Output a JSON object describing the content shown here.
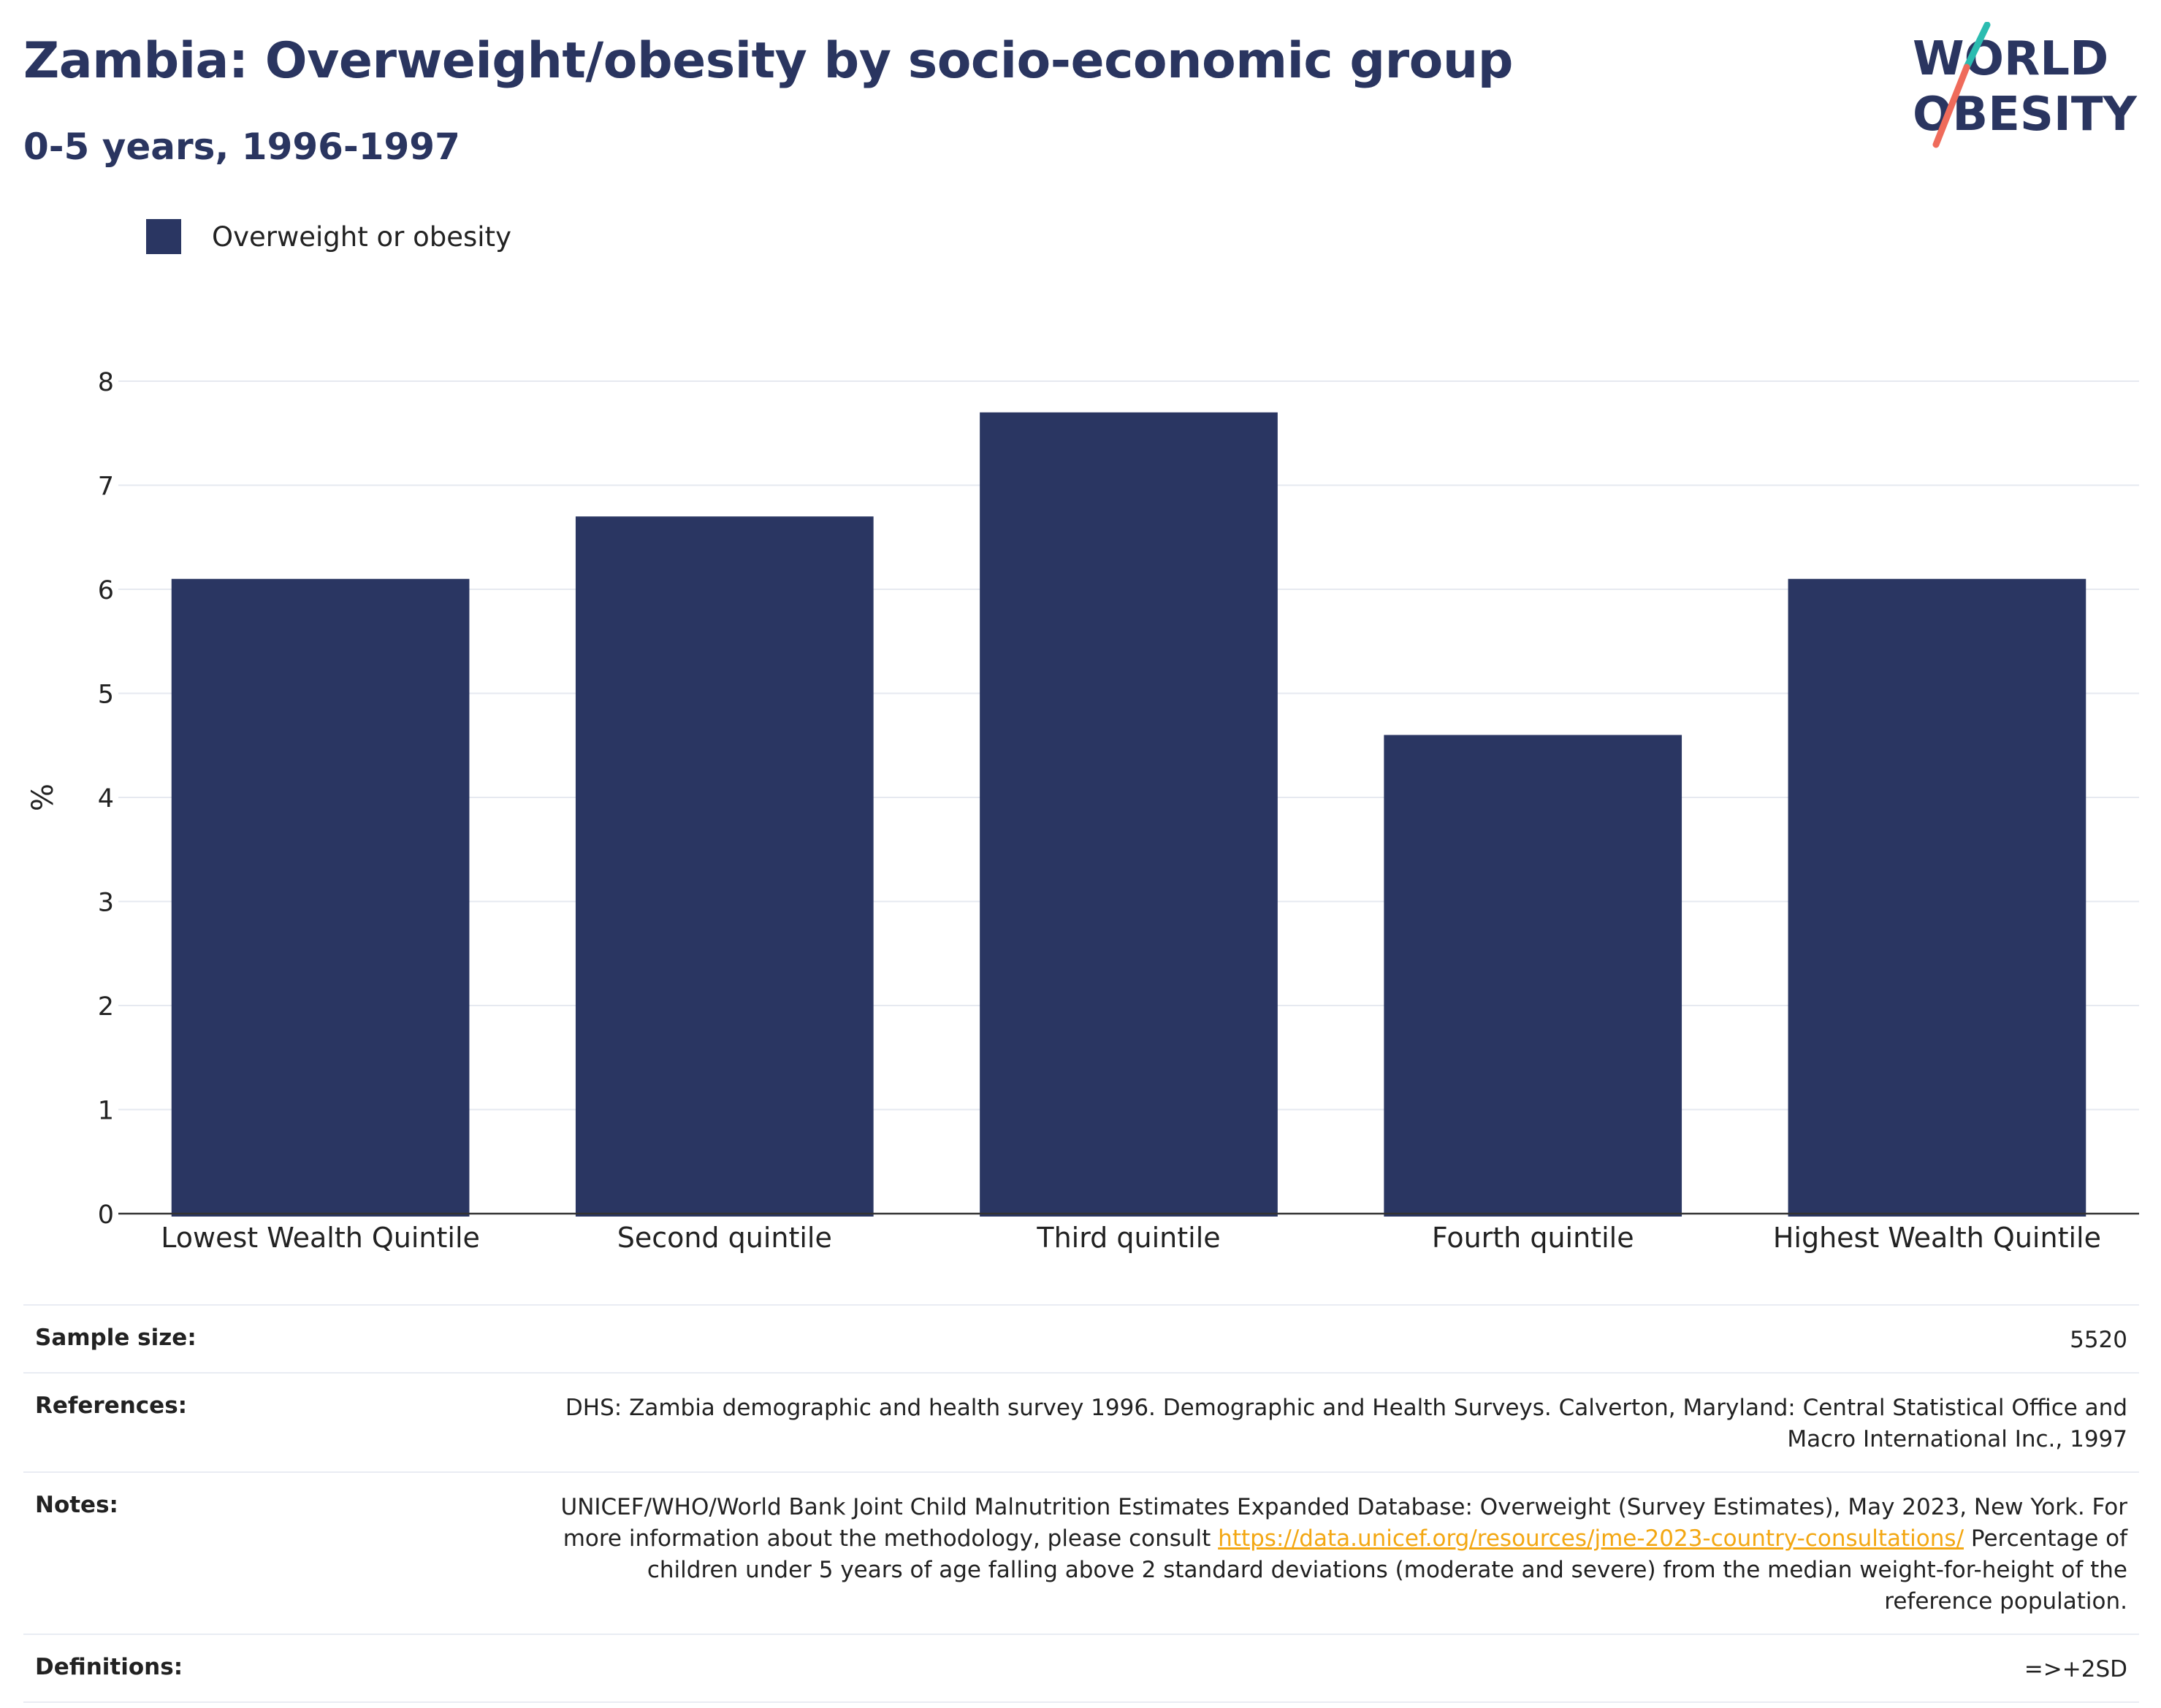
{
  "header": {
    "title": "Zambia: Overweight/obesity by socio-economic group",
    "subtitle": "0-5 years, 1996-1997"
  },
  "logo": {
    "line1": "WORLD",
    "line2": "OBESITY",
    "colors": {
      "text": "#2a3560",
      "slash_top": "#2bbcb0",
      "slash_bottom": "#ef6b5b"
    }
  },
  "legend": {
    "items": [
      {
        "label": "Overweight or obesity",
        "color": "#2a3662"
      }
    ]
  },
  "chart_data": {
    "type": "bar",
    "categories": [
      "Lowest Wealth Quintile",
      "Second quintile",
      "Third quintile",
      "Fourth quintile",
      "Highest Wealth Quintile"
    ],
    "series": [
      {
        "name": "Overweight or obesity",
        "values": [
          6.1,
          6.7,
          7.7,
          4.6,
          6.1
        ],
        "color": "#2a3662"
      }
    ],
    "ylabel": "%",
    "xlabel": "",
    "ylim": [
      0,
      8
    ],
    "yticks": [
      0,
      1,
      2,
      3,
      4,
      5,
      6,
      7,
      8
    ],
    "grid": true
  },
  "info": {
    "sample_size_label": "Sample size:",
    "sample_size_value": "5520",
    "references_label": "References:",
    "references_value": "DHS: Zambia demographic and health survey 1996. Demographic and Health Surveys. Calverton, Maryland: Central Statistical Office and Macro International Inc., 1997",
    "notes_label": "Notes:",
    "notes_text_1": "UNICEF/WHO/World Bank Joint Child Malnutrition Estimates Expanded Database: Overweight (Survey Estimates), May 2023, New York. For more information about the methodology, please consult ",
    "notes_link": "https://data.unicef.org/resources/jme-2023-country-consultations/",
    "notes_text_2": " Percentage of children under 5 years of age falling above 2 standard deviations (moderate and severe) from the median weight-for-height of the reference population.",
    "definitions_label": "Definitions:",
    "definitions_value": "=>+2SD"
  }
}
